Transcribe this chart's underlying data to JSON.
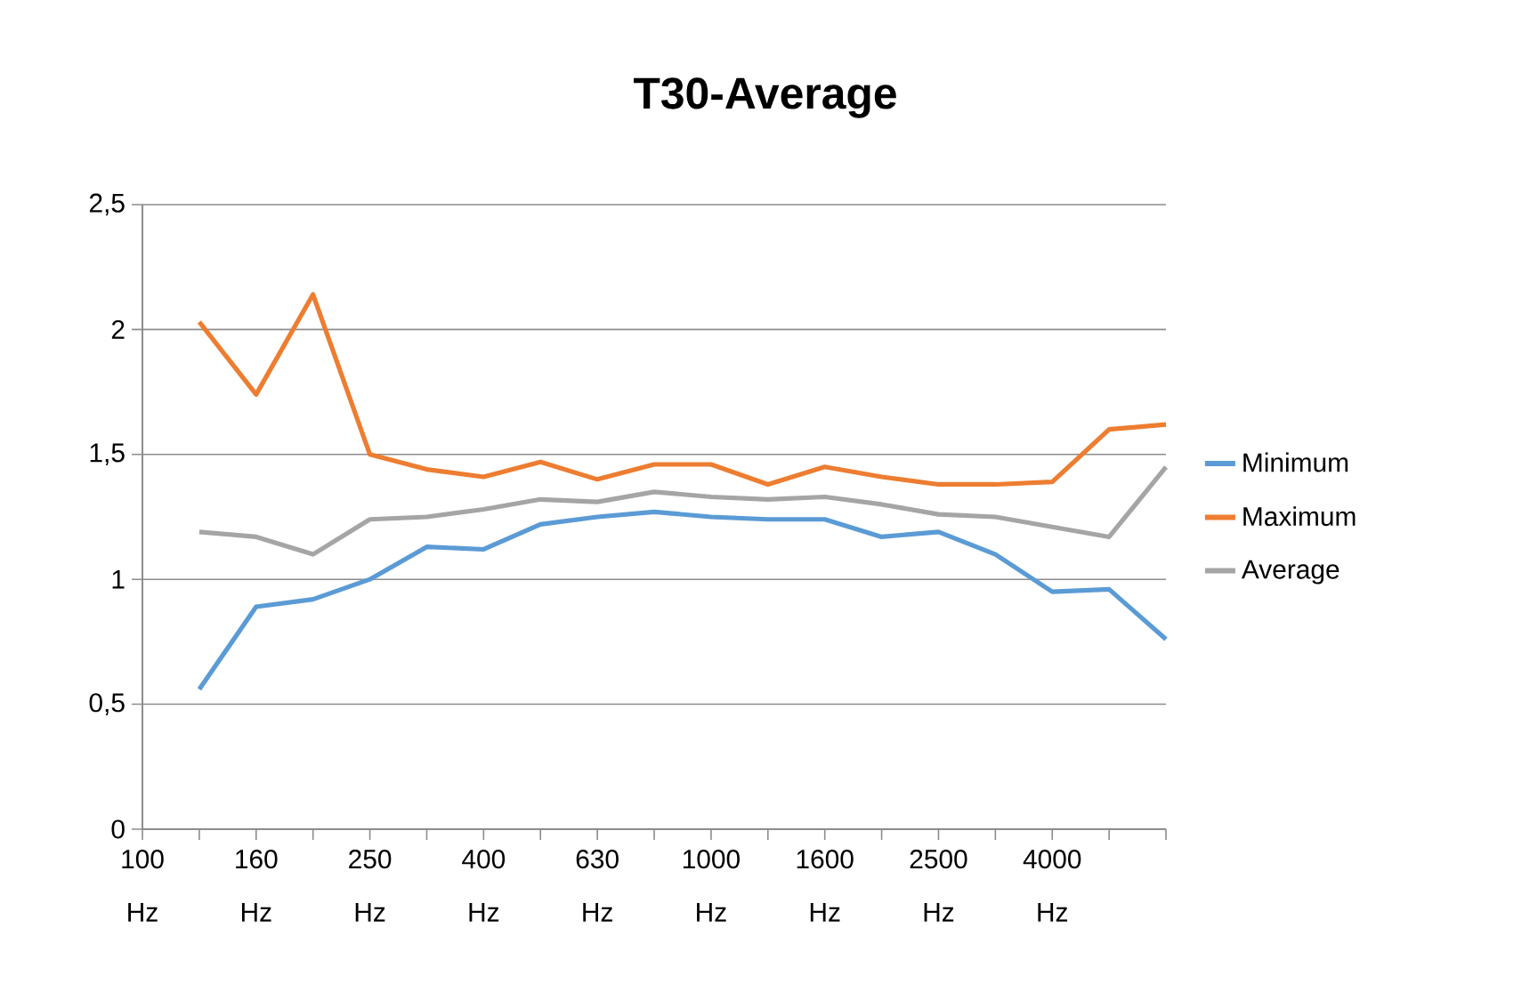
{
  "chart_data": {
    "type": "line",
    "title": "T30-Average",
    "categories": [
      "100 Hz",
      null,
      "160 Hz",
      null,
      "250 Hz",
      null,
      "400 Hz",
      null,
      "630 Hz",
      null,
      "1000 Hz",
      null,
      "1600 Hz",
      null,
      "2500 Hz",
      null,
      "4000 Hz",
      null,
      null
    ],
    "series": [
      {
        "name": "Minimum",
        "color": "#5b9bd5",
        "values": [
          null,
          0.56,
          0.89,
          0.92,
          1.0,
          1.13,
          1.12,
          1.22,
          1.25,
          1.27,
          1.25,
          1.24,
          1.24,
          1.17,
          1.19,
          1.1,
          0.95,
          0.96,
          0.76
        ]
      },
      {
        "name": "Maximum",
        "color": "#ed7d31",
        "values": [
          null,
          2.03,
          1.74,
          2.14,
          1.5,
          1.44,
          1.41,
          1.47,
          1.4,
          1.46,
          1.46,
          1.38,
          1.45,
          1.41,
          1.38,
          1.38,
          1.39,
          1.6,
          1.62
        ]
      },
      {
        "name": "Average",
        "color": "#a5a5a5",
        "values": [
          null,
          1.19,
          1.17,
          1.1,
          1.24,
          1.25,
          1.28,
          1.32,
          1.31,
          1.35,
          1.33,
          1.32,
          1.33,
          1.3,
          1.26,
          1.25,
          1.21,
          1.17,
          1.45
        ]
      }
    ],
    "ylim": [
      0,
      2.5
    ],
    "yticks": [
      0,
      {
        "value": 0.5,
        "label": "0,5"
      },
      1,
      {
        "value": 1.5,
        "label": "1,5"
      },
      2,
      {
        "value": 2.5,
        "label": "2,5"
      }
    ],
    "grid": "y",
    "legend": "right",
    "marker": "none",
    "line_style": "solid"
  }
}
